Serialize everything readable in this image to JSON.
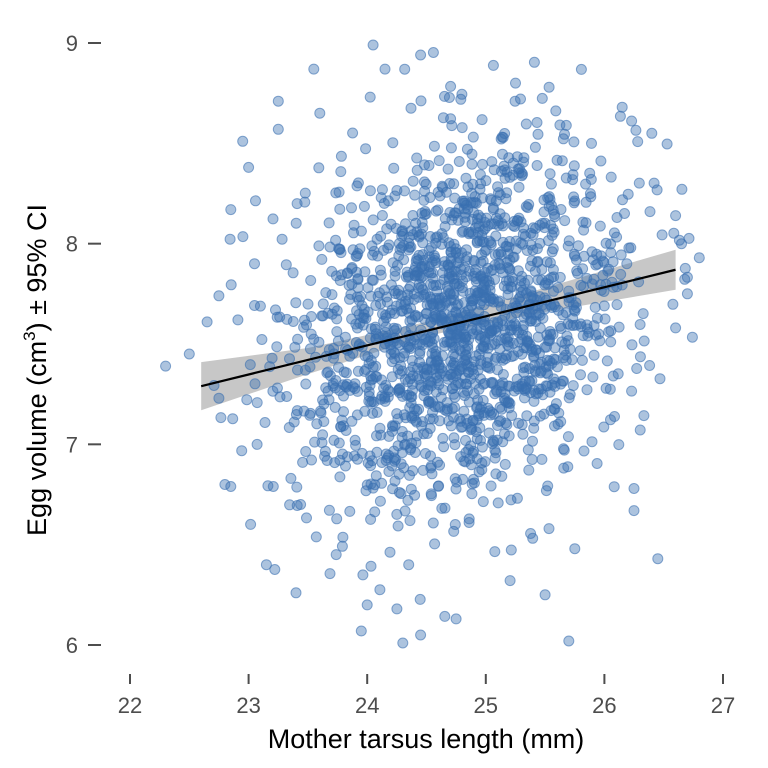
{
  "chart_data": {
    "type": "scatter",
    "xlabel": "Mother tarsus length (mm)",
    "ylabel": {
      "prefix": "Egg volume (cm",
      "superscript": "3",
      "suffix": ") ± 95% CI"
    },
    "x_ticks": [
      "22",
      "23",
      "24",
      "25",
      "26",
      "27"
    ],
    "y_ticks": [
      "6",
      "7",
      "8",
      "9"
    ],
    "xlim": [
      21.85,
      27.1
    ],
    "ylim": [
      5.87,
      9.13
    ],
    "grid": false,
    "legend": "none",
    "point_color": "#3a6fb0",
    "line_color": "#000000",
    "band_color": "#bdbdbd",
    "fit": {
      "x": [
        22.6,
        26.6
      ],
      "y": [
        7.29,
        7.87
      ],
      "ci_lower": [
        7.17,
        7.77
      ],
      "ci_upper": [
        7.41,
        7.97
      ],
      "ci_x": [
        22.6,
        23.5,
        24.5,
        25.5,
        26.6
      ],
      "ci_lower_curve": [
        7.17,
        7.35,
        7.54,
        7.66,
        7.77
      ],
      "ci_upper_curve": [
        7.41,
        7.48,
        7.61,
        7.78,
        7.97
      ]
    },
    "points_summary": {
      "n": 1800,
      "x_mean": 24.8,
      "x_sd": 0.72,
      "y_sd": 0.44,
      "x_range": [
        22.3,
        26.8
      ],
      "y_range": [
        6.0,
        9.0
      ]
    },
    "points_extreme": [
      {
        "x": 22.3,
        "y": 7.39
      },
      {
        "x": 22.5,
        "y": 7.45
      },
      {
        "x": 22.65,
        "y": 7.61
      },
      {
        "x": 22.75,
        "y": 7.74
      },
      {
        "x": 22.75,
        "y": 7.23
      },
      {
        "x": 22.8,
        "y": 6.8
      },
      {
        "x": 22.85,
        "y": 6.79
      },
      {
        "x": 22.85,
        "y": 8.17
      },
      {
        "x": 22.95,
        "y": 8.51
      },
      {
        "x": 23.0,
        "y": 8.38
      },
      {
        "x": 23.05,
        "y": 7.9
      },
      {
        "x": 23.15,
        "y": 6.4
      },
      {
        "x": 23.25,
        "y": 8.71
      },
      {
        "x": 23.25,
        "y": 8.57
      },
      {
        "x": 23.4,
        "y": 6.26
      },
      {
        "x": 23.55,
        "y": 8.87
      },
      {
        "x": 23.6,
        "y": 8.65
      },
      {
        "x": 23.95,
        "y": 6.07
      },
      {
        "x": 24.0,
        "y": 6.2
      },
      {
        "x": 24.05,
        "y": 8.99
      },
      {
        "x": 24.15,
        "y": 8.87
      },
      {
        "x": 24.25,
        "y": 6.18
      },
      {
        "x": 24.3,
        "y": 6.01
      },
      {
        "x": 24.35,
        "y": 6.4
      },
      {
        "x": 24.45,
        "y": 8.94
      },
      {
        "x": 24.45,
        "y": 6.05
      },
      {
        "x": 24.75,
        "y": 6.13
      },
      {
        "x": 25.25,
        "y": 8.8
      },
      {
        "x": 25.5,
        "y": 6.25
      },
      {
        "x": 25.7,
        "y": 6.02
      },
      {
        "x": 25.75,
        "y": 6.48
      },
      {
        "x": 26.15,
        "y": 8.68
      },
      {
        "x": 26.25,
        "y": 6.78
      },
      {
        "x": 26.25,
        "y": 6.67
      },
      {
        "x": 26.4,
        "y": 8.55
      },
      {
        "x": 26.45,
        "y": 6.43
      },
      {
        "x": 26.6,
        "y": 8.14
      },
      {
        "x": 26.6,
        "y": 7.58
      },
      {
        "x": 26.65,
        "y": 8.0
      },
      {
        "x": 26.7,
        "y": 7.75
      },
      {
        "x": 26.8,
        "y": 7.93
      }
    ]
  }
}
